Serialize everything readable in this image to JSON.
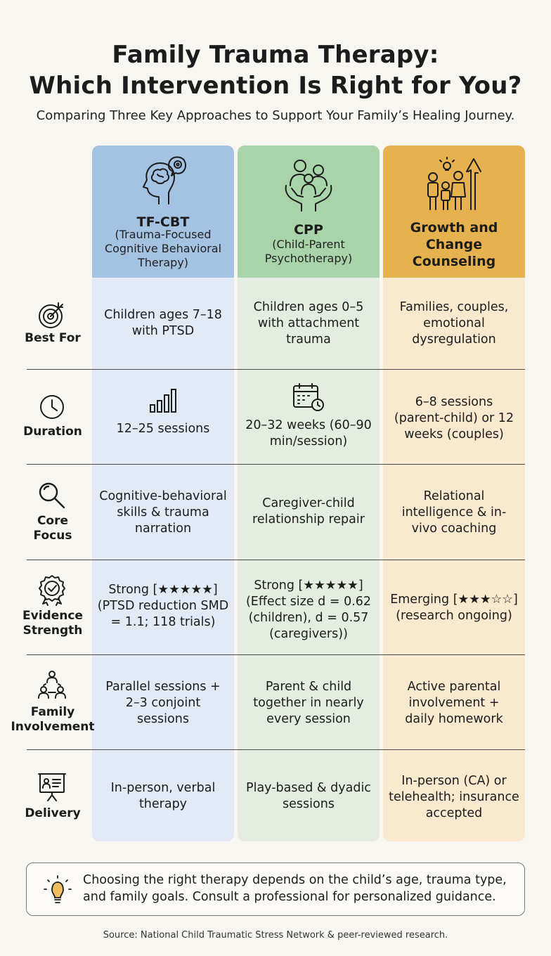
{
  "header": {
    "title_line1": "Family Trauma Therapy:",
    "title_line2": "Which Intervention Is Right for You?",
    "subtitle": "Comparing Three Key Approaches to Support Your Family’s Healing Journey."
  },
  "columns": [
    {
      "title": "TF-CBT",
      "subtitle": "(Trauma-Focused Cognitive Behavioral Therapy)",
      "header_color": "#a4c2e2",
      "body_color": "#e1eaf5",
      "icon": "brain-gear-icon"
    },
    {
      "title": "CPP",
      "subtitle": "(Child-Parent Psychotherapy)",
      "header_color": "#a9d3a9",
      "body_color": "#e3eee0",
      "icon": "family-hands-icon"
    },
    {
      "title": "Growth and Change Counseling",
      "subtitle": "",
      "header_color": "#e6b24f",
      "body_color": "#f8e9cf",
      "icon": "family-growth-icon"
    }
  ],
  "rows": [
    {
      "label": "Best For",
      "icon": "target-icon",
      "cells": [
        "Children ages 7–18 with PTSD",
        "Children ages 0–5 with attachment trauma",
        "Families, couples, emotional dysregulation"
      ]
    },
    {
      "label": "Duration",
      "icon": "clock-icon",
      "cells": [
        "12–25 sessions",
        "20–32 weeks (60–90 min/session)",
        "6–8 sessions (parent-child) or 12 weeks (couples)"
      ]
    },
    {
      "label": "Core Focus",
      "icon": "magnifier-icon",
      "cells": [
        "Cognitive-behavioral skills & trauma narration",
        "Caregiver-child relationship repair",
        "Relational intelligence & in-vivo coaching"
      ]
    },
    {
      "label": "Evidence Strength",
      "icon": "award-ribbon-icon",
      "cells": [
        "Strong [★★★★★] (PTSD reduction SMD = 1.1; 118 trials)",
        "Strong [★★★★★] (Effect size d = 0.62 (children), d = 0.57 (caregivers))",
        "Emerging [★★★☆☆] (research ongoing)"
      ]
    },
    {
      "label": "Family Involvement",
      "icon": "people-network-icon",
      "cells": [
        "Parallel sessions + 2–3 conjoint sessions",
        "Parent & child together in nearly every session",
        "Active parental involvement + daily homework"
      ]
    },
    {
      "label": "Delivery",
      "icon": "presentation-board-icon",
      "cells": [
        "In-person, verbal therapy",
        "Play-based & dyadic sessions",
        "In-person (CA) or telehealth; insurance accepted"
      ]
    }
  ],
  "duration_icons": [
    "bar-chart-icon",
    "calendar-clock-icon"
  ],
  "tip": {
    "icon": "lightbulb-icon",
    "text": "Choosing the right therapy depends on the child’s age, trauma type, and family goals. Consult a professional for personalized guidance."
  },
  "source": "Source: National Child Traumatic Stress Network & peer-reviewed research."
}
